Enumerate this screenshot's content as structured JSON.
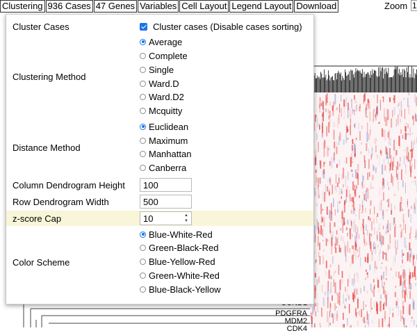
{
  "toolbar": {
    "buttons": [
      "Clustering",
      "936 Cases",
      "47 Genes",
      "Variables",
      "Cell Layout",
      "Legend Layout",
      "Download"
    ],
    "zoom_label": "Zoom",
    "zoom_value": "1"
  },
  "background": {
    "gene_labels": [
      "CCND1",
      "PDGFRA",
      "MDM2",
      "CDK4"
    ]
  },
  "panel": {
    "cluster_cases": {
      "label": "Cluster Cases",
      "checkbox_label": "Cluster cases (Disable cases sorting)",
      "checked": true
    },
    "clustering_method": {
      "label": "Clustering Method",
      "options": [
        "Average",
        "Complete",
        "Single",
        "Ward.D",
        "Ward.D2",
        "Mcquitty"
      ],
      "selected": "Average"
    },
    "distance_method": {
      "label": "Distance Method",
      "options": [
        "Euclidean",
        "Maximum",
        "Manhattan",
        "Canberra"
      ],
      "selected": "Euclidean"
    },
    "column_dendrogram_height": {
      "label": "Column Dendrogram Height",
      "value": "100"
    },
    "row_dendrogram_width": {
      "label": "Row Dendrogram Width",
      "value": "500"
    },
    "zscore_cap": {
      "label": "z-score Cap",
      "value": "10"
    },
    "color_scheme": {
      "label": "Color Scheme",
      "options": [
        "Blue-White-Red",
        "Green-Black-Red",
        "Blue-Yellow-Red",
        "Green-White-Red",
        "Blue-Black-Yellow"
      ],
      "selected": "Blue-White-Red"
    }
  },
  "colors": {
    "accent": "#1a73e8",
    "highlight_row": "#f8f5d8",
    "heat_high": "#e53935",
    "heat_low": "#3f51b5"
  }
}
